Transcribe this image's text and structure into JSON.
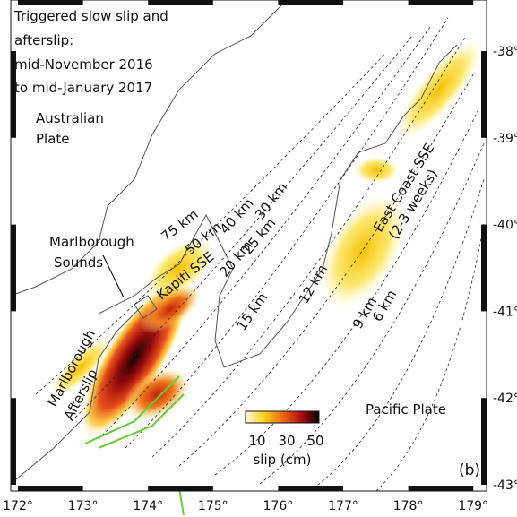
{
  "title": [
    "Triggered slow slip and",
    "afterslip:",
    "mid-November 2016",
    "to mid-January 2017"
  ],
  "plates": {
    "australian": [
      "Australian",
      "Plate"
    ],
    "pacific": "Pacific Plate"
  },
  "features": {
    "marlborough_sounds": [
      "Marlborough",
      "Sounds"
    ],
    "marlborough": "Marlborough",
    "afterslip": "Afterslip",
    "kapiti": "Kapiti SSE",
    "east_coast": "East Coast SSE",
    "east_coast_duration": "(2-3 weeks)"
  },
  "contour_labels": [
    "75 km",
    "50 km",
    "40 km",
    "30 km",
    "25 km",
    "20 km",
    "15 km",
    "12 km",
    "9 km",
    "6 km"
  ],
  "colorbar": {
    "ticks": [
      "10",
      "30",
      "50"
    ],
    "label": "slip (cm)"
  },
  "panel": "(b)",
  "x_labels": [
    "172°",
    "173°",
    "174°",
    "175°",
    "176°",
    "177°",
    "178°",
    "179°"
  ],
  "y_labels": [
    "-38°",
    "-39°",
    "-40°",
    "-41°",
    "-42°",
    "-43°"
  ]
}
